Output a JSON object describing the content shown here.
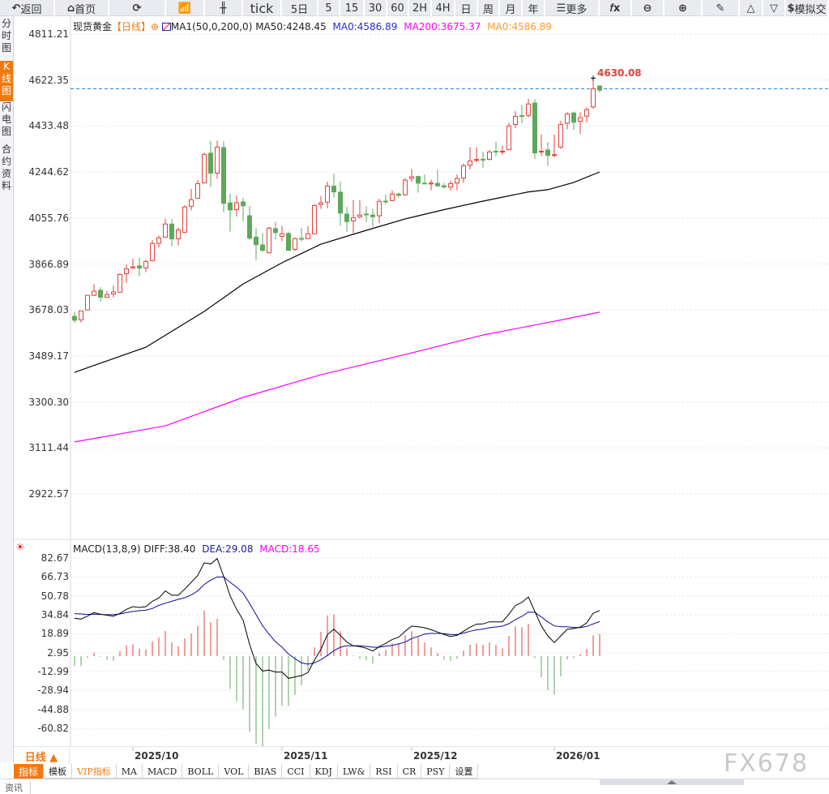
{
  "toolbar": {
    "items": [
      {
        "label": "返回",
        "icon": "back-arrow-icon"
      },
      {
        "label": "首页",
        "icon": "home-icon"
      },
      {
        "label": "",
        "icon": "refresh-icon"
      },
      {
        "label": "",
        "icon": "bar-chart-icon"
      },
      {
        "label": "",
        "icon": "candlestick-icon"
      },
      {
        "label": "tick"
      },
      {
        "label": "5日"
      },
      {
        "label": "5"
      },
      {
        "label": "15"
      },
      {
        "label": "30"
      },
      {
        "label": "60"
      },
      {
        "label": "2H"
      },
      {
        "label": "4H"
      },
      {
        "label": "日"
      },
      {
        "label": "周"
      },
      {
        "label": "月"
      },
      {
        "label": "年"
      },
      {
        "label": "更多",
        "icon": "menu-icon"
      },
      {
        "label": "",
        "icon": "fx-formula-icon"
      },
      {
        "label": "",
        "icon": "zoom-out-icon"
      },
      {
        "label": "",
        "icon": "zoom-in-icon"
      },
      {
        "label": "",
        "icon": "pencil-icon"
      },
      {
        "label": "",
        "icon": "triangle-up-icon"
      },
      {
        "label": "",
        "icon": "triangle-down-icon"
      },
      {
        "label": "模拟交",
        "icon": "dollar-icon"
      }
    ]
  },
  "sidebar": {
    "items": [
      {
        "label": "分时图"
      },
      {
        "label": "K线图",
        "active": true
      },
      {
        "label": "闪电图"
      },
      {
        "label": "合约资料"
      }
    ]
  },
  "legend": {
    "symbol": "现货黄金",
    "period": "【日线】",
    "ma_title": "MA1(50,0,200,0)",
    "ma50": "MA50:4248.45",
    "ma0": "MA0:4586.89",
    "ma200": "MA200:3675.37",
    "ma0b": "MA0:4586.89"
  },
  "price_label": "4630.08",
  "macd_legend": {
    "title": "MACD(13,8,9)",
    "diff": "DIFF:38.40",
    "dea": "DEA:29.08",
    "macd": "MACD:18.65"
  },
  "bottom": {
    "period_button": "日线 ▲",
    "tabs": [
      "指标",
      "模板",
      "VIP指标",
      "MA",
      "MACD",
      "BOLL",
      "VOL",
      "BIAS",
      "CCI",
      "KDJ",
      "LW&",
      "RSI",
      "CR",
      "PSY",
      "设置"
    ],
    "news_tab": "资讯"
  },
  "watermark": "FX678",
  "colors": {
    "up": "#e0413a",
    "down": "#5fa85b",
    "ma50": "#000000",
    "ma200": "#ff00ff",
    "ma0": "#1e7be0",
    "diff": "#000000",
    "dea": "#0a0a9a",
    "accent": "#f07a12"
  },
  "chart_data": [
    {
      "type": "candlestick",
      "ylim": [
        2922.57,
        4811.21
      ],
      "y_ticks": [
        "4811.21",
        "4622.35",
        "4433.48",
        "4244.62",
        "4055.76",
        "3866.89",
        "3678.03",
        "3489.17",
        "3300.30",
        "3111.44",
        "2922.57"
      ],
      "x_ticks": [
        {
          "label": "2025/10",
          "index": 9
        },
        {
          "label": "2025/11",
          "index": 32
        },
        {
          "label": "2025/12",
          "index": 52
        },
        {
          "label": "2026/01",
          "index": 74
        }
      ],
      "candles": [
        [
          3652,
          3669,
          3624,
          3636
        ],
        [
          3638,
          3675,
          3627,
          3674
        ],
        [
          3678,
          3740,
          3676,
          3738
        ],
        [
          3738,
          3785,
          3735,
          3755
        ],
        [
          3759,
          3772,
          3713,
          3730
        ],
        [
          3730,
          3755,
          3728,
          3741
        ],
        [
          3744,
          3778,
          3730,
          3752
        ],
        [
          3751,
          3828,
          3749,
          3824
        ],
        [
          3827,
          3865,
          3790,
          3847
        ],
        [
          3851,
          3888,
          3848,
          3855
        ],
        [
          3859,
          3892,
          3816,
          3850
        ],
        [
          3851,
          3885,
          3833,
          3877
        ],
        [
          3881,
          3965,
          3878,
          3951
        ],
        [
          3952,
          3983,
          3935,
          3974
        ],
        [
          3977,
          4053,
          3976,
          4031
        ],
        [
          4031,
          4052,
          3940,
          3970
        ],
        [
          3971,
          4017,
          3943,
          4007
        ],
        [
          3997,
          4108,
          3995,
          4101
        ],
        [
          4104,
          4175,
          4087,
          4131
        ],
        [
          4137,
          4212,
          4135,
          4197
        ],
        [
          4200,
          4324,
          4198,
          4317
        ],
        [
          4322,
          4373,
          4183,
          4240
        ],
        [
          4240,
          4373,
          4217,
          4347
        ],
        [
          4345,
          4371,
          4080,
          4116
        ],
        [
          4118,
          4155,
          4000,
          4089
        ],
        [
          4090,
          4148,
          4062,
          4118
        ],
        [
          4122,
          4138,
          4042,
          4106
        ],
        [
          4065,
          4105,
          3966,
          3973
        ],
        [
          3977,
          4016,
          3882,
          3946
        ],
        [
          3945,
          3993,
          3917,
          3923
        ],
        [
          3913,
          4020,
          3910,
          4014
        ],
        [
          4012,
          4040,
          3968,
          3996
        ],
        [
          3980,
          4024,
          3960,
          3991
        ],
        [
          3992,
          4000,
          3923,
          3923
        ],
        [
          3927,
          3976,
          3920,
          3971
        ],
        [
          3972,
          4015,
          3960,
          3970
        ],
        [
          3971,
          4022,
          3969,
          3991
        ],
        [
          3991,
          4112,
          3989,
          4107
        ],
        [
          4111,
          4146,
          4093,
          4118
        ],
        [
          4121,
          4205,
          4096,
          4187
        ],
        [
          4187,
          4238,
          4140,
          4163
        ],
        [
          4162,
          4205,
          4025,
          4076
        ],
        [
          4072,
          4101,
          4000,
          4041
        ],
        [
          4044,
          4130,
          3993,
          4057
        ],
        [
          4061,
          4129,
          4053,
          4068
        ],
        [
          4072,
          4104,
          4039,
          4070
        ],
        [
          4068,
          4094,
          4019,
          4061
        ],
        [
          4065,
          4135,
          4035,
          4124
        ],
        [
          4125,
          4153,
          4112,
          4122
        ],
        [
          4127,
          4169,
          4125,
          4154
        ],
        [
          4154,
          4160,
          4140,
          4149
        ],
        [
          4151,
          4220,
          4148,
          4211
        ],
        [
          4218,
          4258,
          4205,
          4225
        ],
        [
          4226,
          4230,
          4160,
          4199
        ],
        [
          4199,
          4235,
          4195,
          4197
        ],
        [
          4196,
          4213,
          4170,
          4199
        ],
        [
          4198,
          4254,
          4183,
          4188
        ],
        [
          4188,
          4200,
          4178,
          4183
        ],
        [
          4183,
          4209,
          4168,
          4197
        ],
        [
          4199,
          4235,
          4170,
          4218
        ],
        [
          4220,
          4280,
          4200,
          4270
        ],
        [
          4273,
          4347,
          4255,
          4290
        ],
        [
          4293,
          4347,
          4285,
          4296
        ],
        [
          4297,
          4328,
          4263,
          4295
        ],
        [
          4297,
          4335,
          4292,
          4327
        ],
        [
          4330,
          4368,
          4310,
          4327
        ],
        [
          4327,
          4352,
          4315,
          4330
        ],
        [
          4336,
          4447,
          4334,
          4434
        ],
        [
          4440,
          4495,
          4425,
          4473
        ],
        [
          4476,
          4520,
          4445,
          4473
        ],
        [
          4477,
          4545,
          4470,
          4524
        ],
        [
          4528,
          4544,
          4299,
          4323
        ],
        [
          4327,
          4400,
          4310,
          4330
        ],
        [
          4335,
          4368,
          4270,
          4313
        ],
        [
          4313,
          4398,
          4305,
          4316
        ],
        [
          4347,
          4455,
          4340,
          4440
        ],
        [
          4445,
          4490,
          4420,
          4483
        ],
        [
          4487,
          4493,
          4418,
          4449
        ],
        [
          4453,
          4490,
          4402,
          4468
        ],
        [
          4474,
          4511,
          4448,
          4501
        ],
        [
          4512,
          4630.08,
          4505,
          4587
        ],
        [
          4598,
          4601,
          4572,
          4581
        ]
      ],
      "ma50": [
        [
          0,
          3422
        ],
        [
          11,
          3525
        ],
        [
          20,
          3672
        ],
        [
          26,
          3785
        ],
        [
          32,
          3872
        ],
        [
          38,
          3948
        ],
        [
          45,
          4005
        ],
        [
          51,
          4052
        ],
        [
          57,
          4090
        ],
        [
          63,
          4125
        ],
        [
          70,
          4163
        ],
        [
          73,
          4172
        ],
        [
          77,
          4202
        ],
        [
          81,
          4245
        ]
      ],
      "ma200": [
        [
          0,
          3136
        ],
        [
          14,
          3202
        ],
        [
          26,
          3319
        ],
        [
          38,
          3412
        ],
        [
          51,
          3495
        ],
        [
          63,
          3575
        ],
        [
          76,
          3642
        ],
        [
          81,
          3669
        ]
      ],
      "ma0": 4586.89
    },
    {
      "type": "macd",
      "ylim": [
        -60.82,
        82.67
      ],
      "y_ticks": [
        "82.67",
        "66.73",
        "50.78",
        "34.84",
        "18.89",
        "2.95",
        "-12.99",
        "-28.94",
        "-44.88",
        "-60.82"
      ],
      "hist": [
        -8.4,
        -8.4,
        -1.6,
        3.0,
        -0.7,
        -3.2,
        -3.9,
        4.1,
        9.1,
        9.8,
        6.2,
        5.5,
        12.3,
        15.7,
        21.2,
        11.6,
        8.2,
        15.0,
        19.1,
        25.3,
        38.3,
        28.7,
        31.4,
        -3.0,
        -27.8,
        -38.0,
        -44.9,
        -63.8,
        -73.8,
        -75.9,
        -61.3,
        -51.0,
        -41.7,
        -42.1,
        -32.6,
        -24.4,
        -12.0,
        7.3,
        20.5,
        34.2,
        35.3,
        21.0,
        6.6,
        0.5,
        -2.3,
        -3.4,
        -6.2,
        2.7,
        5.2,
        10.7,
        10.7,
        17.5,
        21.0,
        16.2,
        11.4,
        7.3,
        2.7,
        -3.0,
        -4.1,
        -2.3,
        4.6,
        9.6,
        10.7,
        9.6,
        11.4,
        9.6,
        6.6,
        17.1,
        25.1,
        24.4,
        27.3,
        -1.6,
        -17.8,
        -28.7,
        -32.1,
        -17.1,
        -2.7,
        -1.6,
        1.8,
        5.9,
        17.5,
        18.65
      ],
      "diff": [
        31.9,
        31.2,
        33.7,
        36.7,
        35.3,
        34.4,
        33.7,
        36.0,
        39.4,
        41.7,
        41.0,
        41.7,
        46.2,
        49.0,
        54.9,
        51.3,
        51.3,
        56.5,
        62.2,
        67.9,
        78.6,
        77.7,
        82.2,
        67.2,
        50.8,
        39.4,
        30.3,
        9.8,
        -6.2,
        -12.5,
        -11.8,
        -13.4,
        -13.4,
        -18.7,
        -17.5,
        -16.4,
        -13.9,
        -3.4,
        5.7,
        18.2,
        22.6,
        17.5,
        11.8,
        8.7,
        8.0,
        6.6,
        4.3,
        8.0,
        10.7,
        14.1,
        15.9,
        21.0,
        25.3,
        24.8,
        23.9,
        22.3,
        20.3,
        18.2,
        16.6,
        17.5,
        21.0,
        24.4,
        26.9,
        27.1,
        28.9,
        28.9,
        28.9,
        35.3,
        42.6,
        45.3,
        49.9,
        37.6,
        25.5,
        17.1,
        11.4,
        17.1,
        22.6,
        23.2,
        24.4,
        28.0,
        36.2,
        38.4
      ],
      "dea": [
        35.8,
        35.5,
        35.1,
        35.3,
        35.1,
        34.9,
        34.9,
        35.5,
        36.7,
        37.6,
        38.3,
        38.7,
        40.1,
        42.8,
        44.6,
        46.2,
        47.8,
        49.2,
        51.5,
        54.9,
        60.4,
        64.0,
        66.7,
        66.7,
        62.2,
        58.1,
        53.1,
        44.4,
        34.9,
        25.7,
        18.5,
        12.1,
        7.5,
        1.8,
        -2.1,
        -5.7,
        -6.8,
        -5.7,
        -3.0,
        0.5,
        4.6,
        7.5,
        8.7,
        8.7,
        8.7,
        8.2,
        7.5,
        7.5,
        8.4,
        9.1,
        10.3,
        11.8,
        14.8,
        16.6,
        18.5,
        19.1,
        19.1,
        18.9,
        18.2,
        18.2,
        19.4,
        21.0,
        22.1,
        22.8,
        23.9,
        24.6,
        25.3,
        27.3,
        30.8,
        33.5,
        37.1,
        36.9,
        33.0,
        28.9,
        25.5,
        24.8,
        24.8,
        24.1,
        24.1,
        25.1,
        27.1,
        29.08
      ]
    }
  ]
}
